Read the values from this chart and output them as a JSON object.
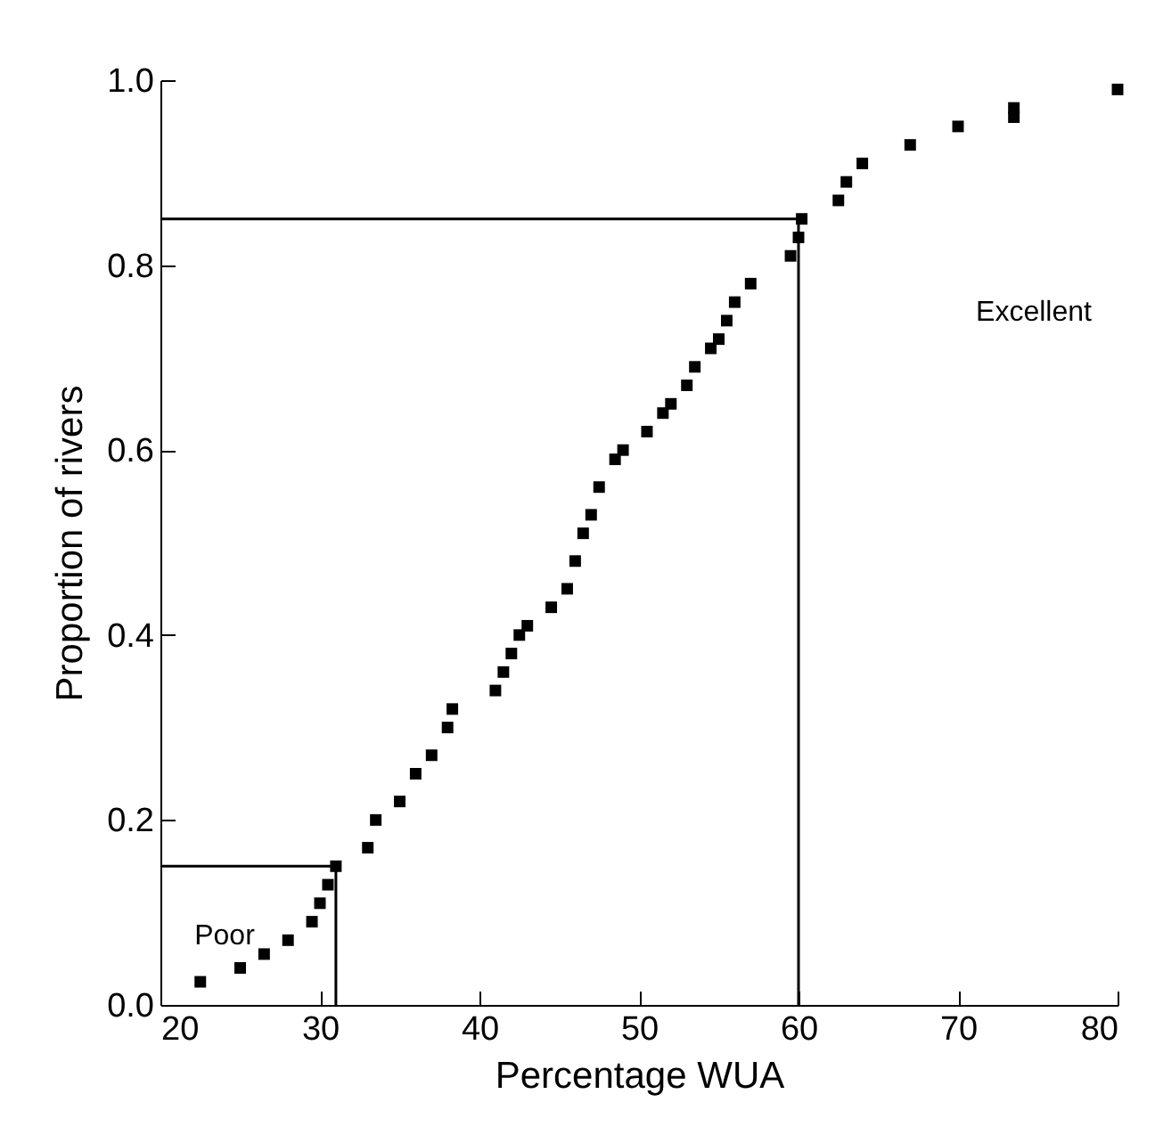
{
  "chart_data": {
    "type": "scatter",
    "xlabel": "Percentage WUA",
    "ylabel": "Proportion of rivers",
    "xlim": [
      20,
      80
    ],
    "ylim": [
      0,
      1
    ],
    "xticks": [
      20,
      30,
      40,
      50,
      60,
      70,
      80
    ],
    "yticks": [
      {
        "value": 0,
        "label": "0.0"
      },
      0.2,
      0.4,
      0.6,
      0.8,
      {
        "value": 1,
        "label": "1.0"
      }
    ],
    "grid": false,
    "series": [
      {
        "marker": "square",
        "color": "#000000",
        "x": [
          22.5,
          25,
          26.5,
          28,
          29.5,
          30,
          30.5,
          31,
          33,
          33.5,
          35,
          36,
          37,
          38,
          38.3,
          41,
          41.5,
          42,
          42.5,
          43,
          44.5,
          45.5,
          46,
          46.5,
          47,
          47.5,
          48.5,
          49,
          50.5,
          51.5,
          52,
          53,
          53.5,
          54.5,
          55,
          55.5,
          56,
          57,
          59.5,
          60,
          60.2,
          62.5,
          63,
          64,
          67,
          70,
          73.5,
          73.5,
          80
        ],
        "values": [
          0.025,
          0.04,
          0.055,
          0.07,
          0.09,
          0.11,
          0.13,
          0.15,
          0.17,
          0.2,
          0.22,
          0.25,
          0.27,
          0.3,
          0.32,
          0.34,
          0.36,
          0.38,
          0.4,
          0.41,
          0.43,
          0.45,
          0.48,
          0.51,
          0.53,
          0.56,
          0.59,
          0.6,
          0.62,
          0.64,
          0.65,
          0.67,
          0.69,
          0.71,
          0.72,
          0.74,
          0.76,
          0.78,
          0.81,
          0.83,
          0.85,
          0.87,
          0.89,
          0.91,
          0.93,
          0.95,
          0.96,
          0.97,
          0.99
        ]
      },
      {
        "type": "line",
        "marker": "none",
        "color": "#000000",
        "x": [
          20,
          31,
          31
        ],
        "values": [
          0.15,
          0.15,
          0
        ]
      },
      {
        "type": "line",
        "marker": "none",
        "color": "#000000",
        "x": [
          20,
          60,
          60
        ],
        "values": [
          0.85,
          0.85,
          0
        ]
      }
    ],
    "annotations": [
      "Poor",
      "Excellent"
    ]
  }
}
